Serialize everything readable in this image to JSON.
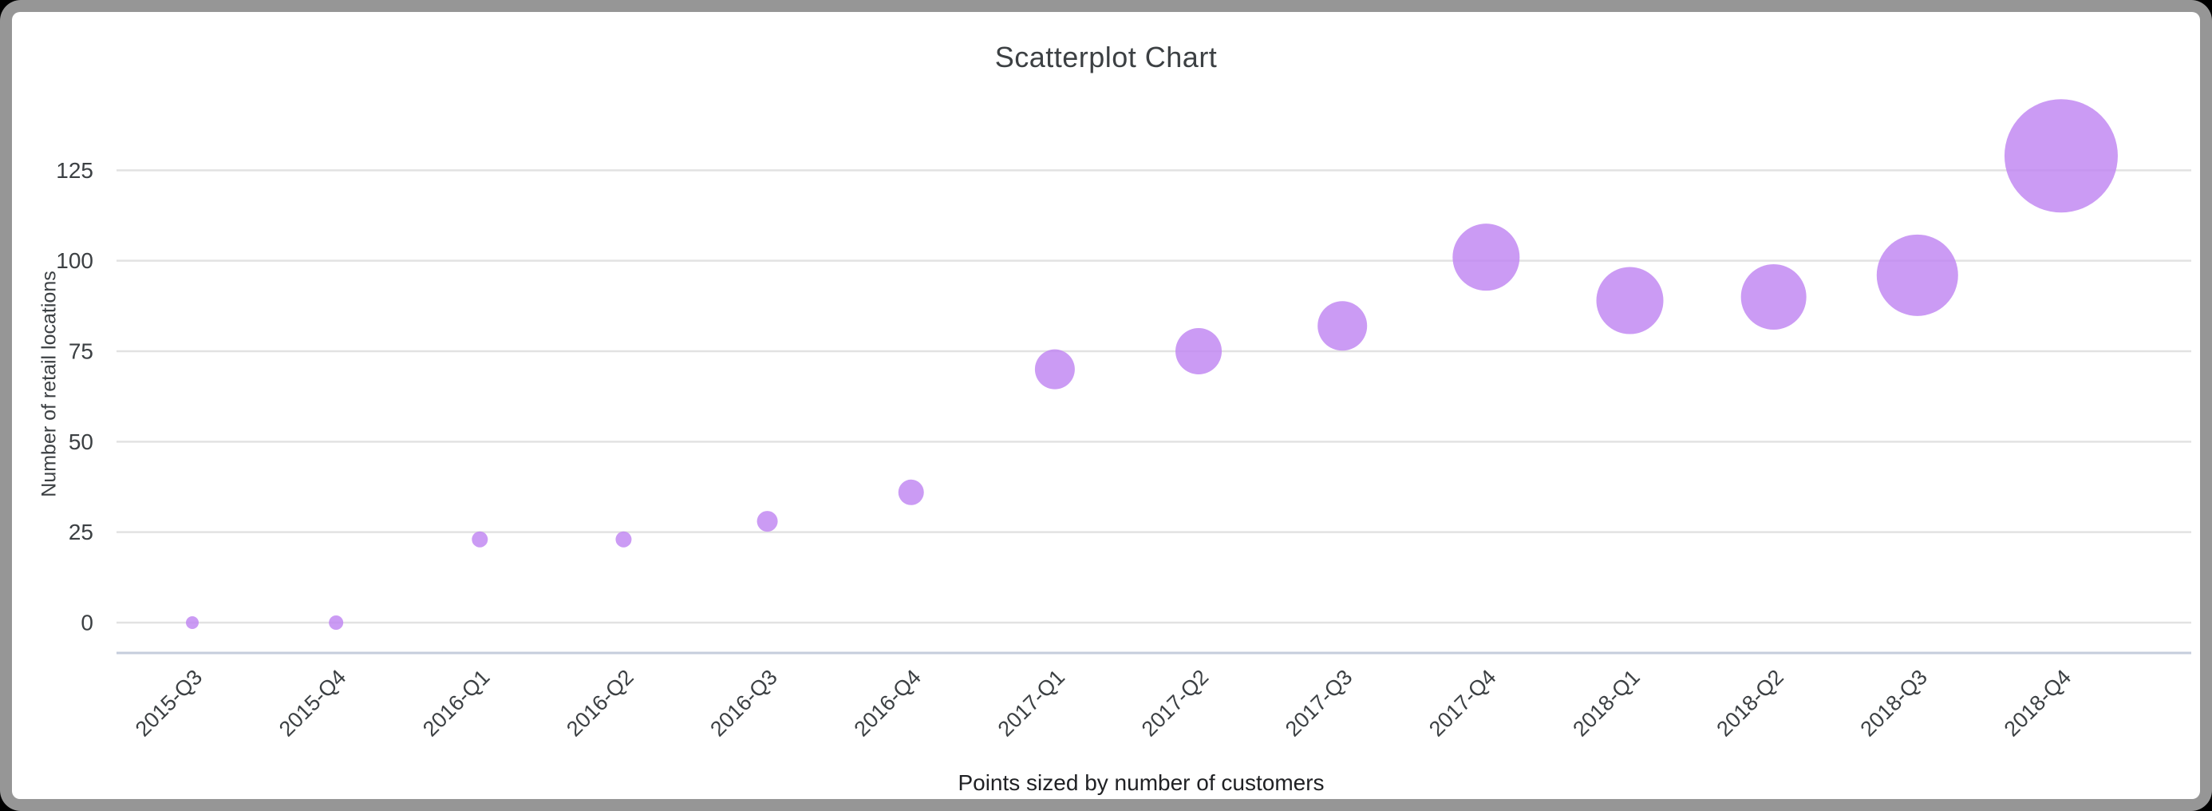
{
  "page": {
    "background_color": "#000000",
    "card_border_color": "#969696",
    "card_background": "#ffffff"
  },
  "chart_data": {
    "type": "scatter",
    "title": "Scatterplot Chart",
    "xlabel": "",
    "ylabel": "Number of retail locations",
    "caption": "Points sized by number of customers",
    "categories": [
      "2015-Q3",
      "2015-Q4",
      "2016-Q1",
      "2016-Q2",
      "2016-Q3",
      "2016-Q4",
      "2017-Q1",
      "2017-Q2",
      "2017-Q3",
      "2017-Q4",
      "2018-Q1",
      "2018-Q2",
      "2018-Q3",
      "2018-Q4"
    ],
    "series": [
      {
        "name": "Number of retail locations",
        "values": [
          0,
          0,
          23,
          23,
          28,
          36,
          70,
          75,
          82,
          101,
          89,
          90,
          96,
          129
        ],
        "point_radius_px": [
          8,
          9,
          10,
          10,
          13,
          16,
          25,
          29,
          31,
          42,
          42,
          41,
          51,
          71
        ]
      }
    ],
    "yticks": [
      0,
      25,
      50,
      75,
      100,
      125
    ],
    "ylim": [
      0,
      140
    ],
    "grid": true,
    "legend": "none",
    "point_color": "#bf85f1",
    "point_opacity": 0.82,
    "gridline_color": "#e2e2e2",
    "baseline_color": "#c5cddc",
    "tick_label_color": "#3c4043",
    "title_color": "#3c4043",
    "caption_color": "#202124"
  }
}
